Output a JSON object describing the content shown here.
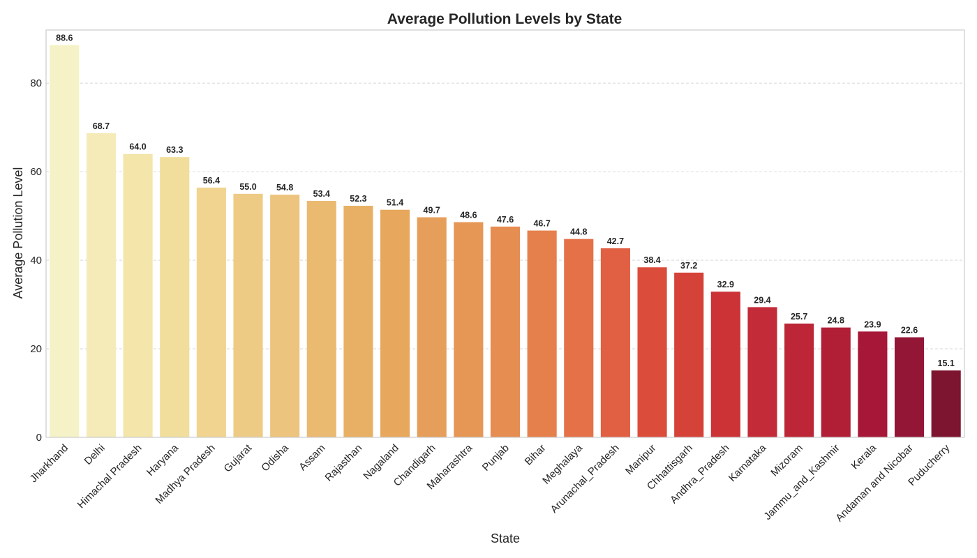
{
  "chart_data": {
    "type": "bar",
    "title": "Average Pollution Levels by State",
    "xlabel": "State",
    "ylabel": "Average Pollution Level",
    "ylim": [
      0,
      92
    ],
    "yticks": [
      0,
      20,
      40,
      60,
      80
    ],
    "grid": "y-dashed",
    "categories": [
      "Jharkhand",
      "Delhi",
      "Himachal Pradesh",
      "Haryana",
      "Madhya Pradesh",
      "Gujarat",
      "Odisha",
      "Assam",
      "Rajasthan",
      "Nagaland",
      "Chandigarh",
      "Maharashtra",
      "Punjab",
      "Bihar",
      "Meghalaya",
      "Arunachal_Pradesh",
      "Manipur",
      "Chhattisgarh",
      "Andhra_Pradesh",
      "Karnataka",
      "Mizoram",
      "Jammu_and_Kashmir",
      "Kerala",
      "Andaman and Nicobar",
      "Puducherry"
    ],
    "values": [
      88.6,
      68.7,
      64.0,
      63.3,
      56.4,
      55.0,
      54.8,
      53.4,
      52.3,
      51.4,
      49.7,
      48.6,
      47.6,
      46.7,
      44.8,
      42.7,
      38.4,
      37.2,
      32.9,
      29.4,
      25.7,
      24.8,
      23.9,
      22.6,
      15.1
    ],
    "value_labels": [
      "88.6",
      "68.7",
      "64.0",
      "63.3",
      "56.4",
      "55.0",
      "54.8",
      "53.4",
      "52.3",
      "51.4",
      "49.7",
      "48.6",
      "47.6",
      "46.7",
      "44.8",
      "42.7",
      "38.4",
      "37.2",
      "32.9",
      "29.4",
      "25.7",
      "24.8",
      "23.9",
      "22.6",
      "15.1"
    ],
    "colors": [
      "#f6f2c7",
      "#f5ebb8",
      "#f4e5aa",
      "#f2de9c",
      "#f0d48f",
      "#eecb84",
      "#ecc47e",
      "#eaba71",
      "#e8b064",
      "#e7a85e",
      "#e69f5a",
      "#e69655",
      "#e68d51",
      "#e5804c",
      "#e47147",
      "#e15f42",
      "#dc4c3b",
      "#d54238",
      "#cb3337",
      "#c22b37",
      "#bc2637",
      "#b11f37",
      "#a71838",
      "#931636",
      "#7d1530"
    ]
  }
}
